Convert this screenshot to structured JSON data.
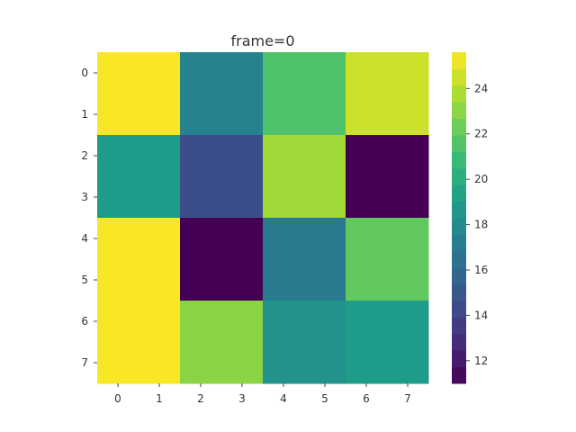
{
  "chart_data": {
    "type": "heatmap",
    "title": "frame=0",
    "x_tick_labels": [
      "0",
      "1",
      "2",
      "3",
      "4",
      "5",
      "6",
      "7"
    ],
    "y_tick_labels": [
      "0",
      "1",
      "2",
      "3",
      "4",
      "5",
      "6",
      "7"
    ],
    "grid": false,
    "blocks": {
      "rows": [
        [
          0,
          1
        ],
        [
          2,
          3
        ],
        [
          4,
          5
        ],
        [
          6,
          7
        ]
      ],
      "cols": [
        [
          0,
          1
        ],
        [
          2,
          3
        ],
        [
          4,
          5
        ],
        [
          6,
          7
        ]
      ],
      "values": [
        [
          25.5,
          17.5,
          21.5,
          24.5
        ],
        [
          19.0,
          14.5,
          23.5,
          11.0
        ],
        [
          25.5,
          11.0,
          17.0,
          22.0
        ],
        [
          25.5,
          23.0,
          18.5,
          19.0
        ]
      ]
    },
    "colorbar": {
      "colormap": "viridis",
      "range": [
        11.0,
        25.6
      ],
      "tick_labels": [
        "12",
        "14",
        "16",
        "18",
        "20",
        "22",
        "24"
      ],
      "stops": [
        "#440154",
        "#482878",
        "#3e4989",
        "#31688e",
        "#26828e",
        "#1f9e89",
        "#35b779",
        "#6ece58",
        "#b5de2b",
        "#fde725"
      ]
    }
  }
}
